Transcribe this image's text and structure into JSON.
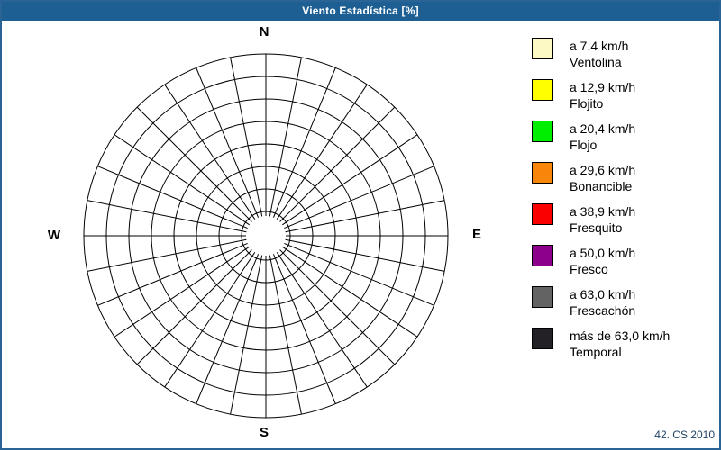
{
  "window": {
    "title": "Viento Estadística [%]"
  },
  "colors": {
    "title_bar": "#1D5F93",
    "window_border": "#2A6496",
    "grid_line": "#000000",
    "background": "#FFFFFF"
  },
  "compass": {
    "north": "N",
    "south": "S",
    "east": "E",
    "west": "W"
  },
  "legend": {
    "items": [
      {
        "color": "#FCF9C4",
        "speed": "a 7,4 km/h",
        "name": "Ventolina"
      },
      {
        "color": "#FFFF00",
        "speed": "a 12,9 km/h",
        "name": "Flojito"
      },
      {
        "color": "#00EE00",
        "speed": "a 20,4 km/h",
        "name": "Flojo"
      },
      {
        "color": "#F8860B",
        "speed": "a 29,6 km/h",
        "name": "Bonancible"
      },
      {
        "color": "#FB0000",
        "speed": "a 38,9 km/h",
        "name": "Fresquito"
      },
      {
        "color": "#8C008C",
        "speed": "a 50,0 km/h",
        "name": "Fresco"
      },
      {
        "color": "#636363",
        "speed": "a 63,0 km/h",
        "name": "Frescachón"
      },
      {
        "color": "#232125",
        "speed": "más de 63,0 km/h",
        "name": "Temporal"
      }
    ]
  },
  "footer": {
    "text": "42. CS 2010"
  },
  "chart_data": {
    "type": "wind-rose",
    "title": "Viento Estadística [%]",
    "units": "%",
    "num_sectors": 32,
    "num_rings": 8,
    "compass_labels": [
      "N",
      "E",
      "S",
      "W"
    ],
    "series": [],
    "note": "Empty polar grid: 32 direction sectors (11.25° each), 8 concentric frequency rings, hollow center disc; no wind-frequency values are plotted.",
    "legend_position": "right",
    "legend_categories": [
      "a 7,4 km/h Ventolina",
      "a 12,9 km/h Flojito",
      "a 20,4 km/h Flojo",
      "a 29,6 km/h Bonancible",
      "a 38,9 km/h Fresquito",
      "a 50,0 km/h Fresco",
      "a 63,0 km/h Frescachón",
      "más de 63,0 km/h Temporal"
    ]
  }
}
